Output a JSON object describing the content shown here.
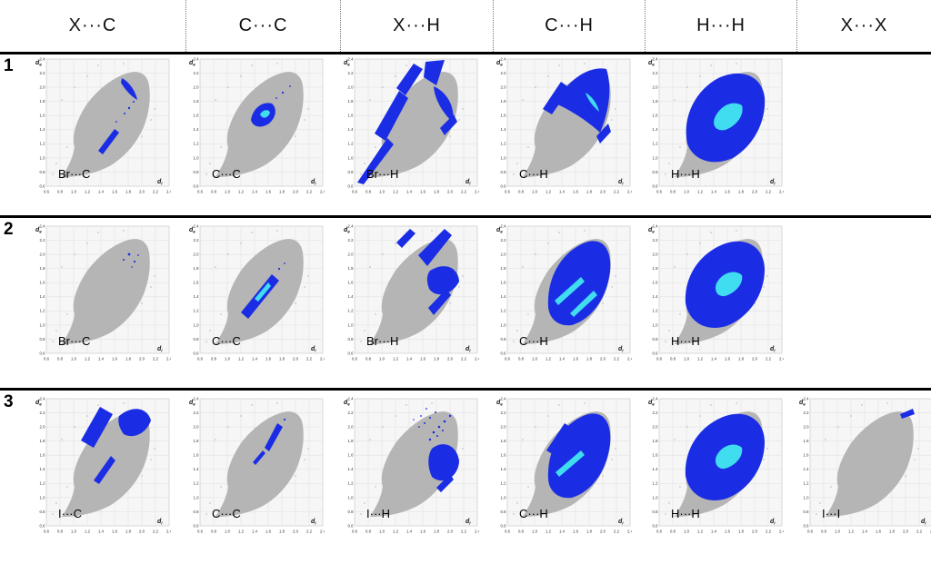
{
  "figure": {
    "columns": [
      "X···C",
      "C···C",
      "X···H",
      "C···H",
      "H···H",
      "X···X"
    ],
    "rows": [
      {
        "label": "1",
        "cells": [
          {
            "label": "Br···C",
            "pattern": "r1-xc"
          },
          {
            "label": "C···C",
            "pattern": "r1-cc"
          },
          {
            "label": "Br···H",
            "pattern": "r1-xh"
          },
          {
            "label": "C···H",
            "pattern": "r1-ch"
          },
          {
            "label": "H···H",
            "pattern": "r1-hh"
          },
          null
        ]
      },
      {
        "label": "2",
        "cells": [
          {
            "label": "Br···C",
            "pattern": "r2-xc"
          },
          {
            "label": "C···C",
            "pattern": "r2-cc"
          },
          {
            "label": "Br···H",
            "pattern": "r2-xh"
          },
          {
            "label": "C···H",
            "pattern": "r2-ch"
          },
          {
            "label": "H···H",
            "pattern": "r2-hh"
          },
          null
        ]
      },
      {
        "label": "3",
        "cells": [
          {
            "label": "I···C",
            "pattern": "r3-ic"
          },
          {
            "label": "C···C",
            "pattern": "r3-cc"
          },
          {
            "label": "I···H",
            "pattern": "r3-ih"
          },
          {
            "label": "C···H",
            "pattern": "r3-ch"
          },
          {
            "label": "H···H",
            "pattern": "r3-hh"
          },
          {
            "label": "I···I",
            "pattern": "r3-ii"
          }
        ]
      }
    ],
    "axis": {
      "y_label": "d",
      "y_sub": "e",
      "x_label": "d",
      "x_sub": "i",
      "ticks": [
        "0.6",
        "0.8",
        "1.0",
        "1.2",
        "1.4",
        "1.6",
        "1.8",
        "2.0",
        "2.2",
        "2.4"
      ]
    },
    "colors": {
      "scatter_gray": "#b5b5b5",
      "highlight_blue": "#1b2de4",
      "highlight_cyan": "#40dcf0",
      "grid": "#dcdcdc",
      "plot_bg": "#f6f6f6",
      "tick_text": "#333333"
    }
  }
}
